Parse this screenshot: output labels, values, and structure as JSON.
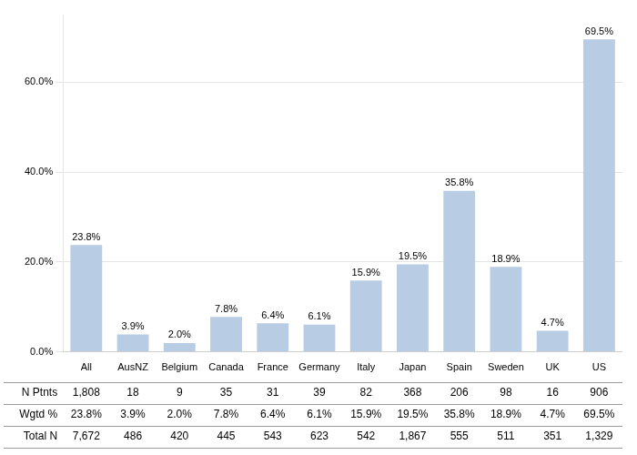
{
  "chart_data": {
    "type": "bar",
    "categories": [
      "All",
      "AusNZ",
      "Belgium",
      "Canada",
      "France",
      "Germany",
      "Italy",
      "Japan",
      "Spain",
      "Sweden",
      "UK",
      "US"
    ],
    "values": [
      23.8,
      3.9,
      2.0,
      7.8,
      6.4,
      6.1,
      15.9,
      19.5,
      35.8,
      18.9,
      4.7,
      69.5
    ],
    "value_labels": [
      "23.8%",
      "3.9%",
      "2.0%",
      "7.8%",
      "6.4%",
      "6.1%",
      "15.9%",
      "19.5%",
      "35.8%",
      "18.9%",
      "4.7%",
      "69.5%"
    ],
    "data_labels": true,
    "color": "#b8cce4",
    "ylim": [
      0,
      75
    ],
    "yticks": [
      {
        "value": 0,
        "label": "0.0%"
      },
      {
        "value": 20,
        "label": "20.0%"
      },
      {
        "value": 40,
        "label": "40.0%"
      },
      {
        "value": 60,
        "label": "60.0%"
      }
    ],
    "grid": true,
    "table": [
      {
        "name": "N Ptnts",
        "values": [
          1808,
          18,
          9,
          35,
          31,
          39,
          82,
          368,
          206,
          98,
          16,
          906
        ],
        "value_labels": [
          "1,808",
          "18",
          "9",
          "35",
          "31",
          "39",
          "82",
          "368",
          "206",
          "98",
          "16",
          "906"
        ]
      },
      {
        "name": "Wgtd %",
        "values": [
          23.8,
          3.9,
          2.0,
          7.8,
          6.4,
          6.1,
          15.9,
          19.5,
          35.8,
          18.9,
          4.7,
          69.5
        ],
        "value_labels": [
          "23.8%",
          "3.9%",
          "2.0%",
          "7.8%",
          "6.4%",
          "6.1%",
          "15.9%",
          "19.5%",
          "35.8%",
          "18.9%",
          "4.7%",
          "69.5%"
        ]
      },
      {
        "name": "Total N",
        "values": [
          7672,
          486,
          420,
          445,
          543,
          623,
          542,
          1867,
          555,
          511,
          351,
          1329
        ],
        "value_labels": [
          "7,672",
          "486",
          "420",
          "445",
          "543",
          "623",
          "542",
          "1,867",
          "555",
          "511",
          "351",
          "1,329"
        ]
      }
    ]
  }
}
